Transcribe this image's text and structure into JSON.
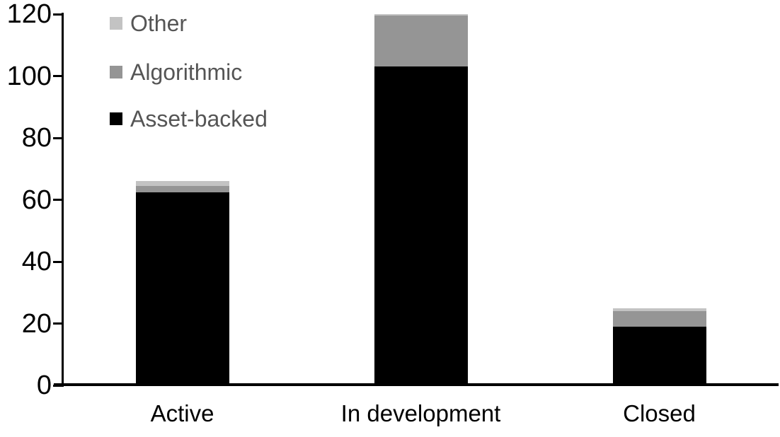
{
  "chart_data": {
    "type": "bar",
    "stacked": true,
    "title": "",
    "xlabel": "",
    "ylabel": "",
    "categories": [
      "Active",
      "In development",
      "Closed"
    ],
    "series": [
      {
        "name": "Asset-backed",
        "color": "#000000",
        "values": [
          62.5,
          103,
          19
        ]
      },
      {
        "name": "Algorithmic",
        "color": "#959595",
        "values": [
          2,
          16.5,
          5
        ]
      },
      {
        "name": "Other",
        "color": "#c3c3c3",
        "values": [
          1.5,
          0.5,
          1
        ]
      }
    ],
    "yticks": [
      0,
      20,
      40,
      60,
      80,
      100,
      120
    ],
    "ylim": [
      0,
      120
    ],
    "grid": false,
    "legend_position": "top-left",
    "legend_order_top_to_bottom": [
      "Other",
      "Algorithmic",
      "Asset-backed"
    ],
    "axis_color": "#000000",
    "legend_text_color": "#555555"
  }
}
